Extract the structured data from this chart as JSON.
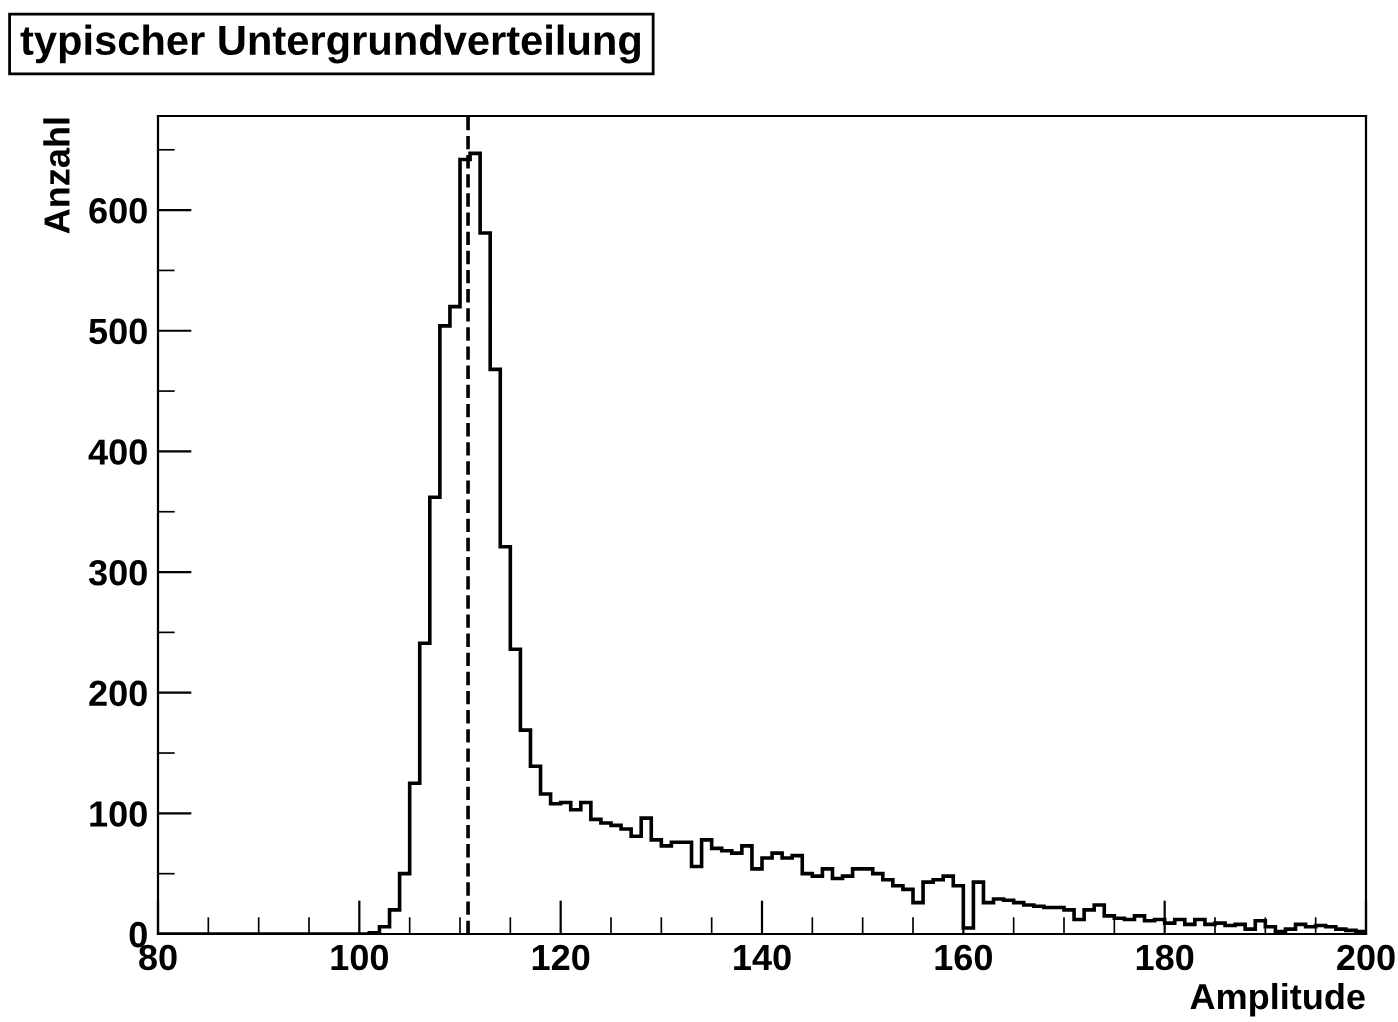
{
  "chart_data": {
    "type": "histogram",
    "title": "typischer Untergrundverteilung",
    "xlabel": "Amplitude",
    "ylabel": "Anzahl",
    "bins": [
      80,
      81,
      82,
      83,
      84,
      85,
      86,
      87,
      88,
      89,
      90,
      91,
      92,
      93,
      94,
      95,
      96,
      97,
      98,
      99,
      100,
      101,
      102,
      103,
      104,
      105,
      106,
      107,
      108,
      109,
      110,
      111,
      112,
      113,
      114,
      115,
      116,
      117,
      118,
      119,
      120,
      121,
      122,
      123,
      124,
      125,
      126,
      127,
      128,
      129,
      130,
      131,
      132,
      133,
      134,
      135,
      136,
      137,
      138,
      139,
      140,
      141,
      142,
      143,
      144,
      145,
      146,
      147,
      148,
      149,
      150,
      151,
      152,
      153,
      154,
      155,
      156,
      157,
      158,
      159,
      160,
      161,
      162,
      163,
      164,
      165,
      166,
      167,
      168,
      169,
      170,
      171,
      172,
      173,
      174,
      175,
      176,
      177,
      178,
      179,
      180,
      181,
      182,
      183,
      184,
      185,
      186,
      187,
      188,
      189,
      190,
      191,
      192,
      193,
      194,
      195,
      196,
      197,
      198,
      199,
      200
    ],
    "values": [
      0,
      0,
      0,
      0,
      0,
      0,
      0,
      0,
      0,
      0,
      0,
      0,
      0,
      0,
      0,
      0,
      0,
      0,
      0,
      0,
      0,
      1,
      6,
      20,
      50,
      125,
      241,
      362,
      504,
      520,
      642,
      647,
      581,
      468,
      321,
      236,
      169,
      139,
      116,
      108,
      109,
      103,
      109,
      95,
      92,
      90,
      87,
      81,
      96,
      78,
      73,
      76,
      76,
      56,
      78,
      71,
      69,
      67,
      73,
      54,
      63,
      67,
      63,
      65,
      50,
      48,
      54,
      46,
      48,
      54,
      54,
      50,
      45,
      40,
      37,
      26,
      43,
      45,
      48,
      40,
      5,
      43,
      26,
      29,
      28,
      26,
      24,
      23,
      22,
      22,
      20,
      12,
      20,
      24,
      15,
      13,
      12,
      15,
      11,
      12,
      9,
      12,
      8,
      12,
      8,
      9,
      7,
      8,
      4,
      11,
      6,
      2,
      4,
      8,
      6,
      7,
      6,
      4,
      3,
      2
    ],
    "color": "#000000",
    "xlim": [
      80,
      200
    ],
    "ylim": [
      0,
      678
    ],
    "xticks": [
      80,
      {
        "value": 85,
        "label": null
      },
      {
        "value": 90,
        "label": null
      },
      {
        "value": 95,
        "label": null
      },
      100,
      {
        "value": 105,
        "label": null
      },
      {
        "value": 110,
        "label": null
      },
      {
        "value": 115,
        "label": null
      },
      120,
      {
        "value": 125,
        "label": null
      },
      {
        "value": 130,
        "label": null
      },
      {
        "value": 135,
        "label": null
      },
      140,
      {
        "value": 145,
        "label": null
      },
      {
        "value": 150,
        "label": null
      },
      {
        "value": 155,
        "label": null
      },
      160,
      {
        "value": 165,
        "label": null
      },
      {
        "value": 170,
        "label": null
      },
      {
        "value": 175,
        "label": null
      },
      180,
      {
        "value": 185,
        "label": null
      },
      {
        "value": 190,
        "label": null
      },
      {
        "value": 195,
        "label": null
      },
      200
    ],
    "yticks": [
      0,
      {
        "value": 50,
        "label": null
      },
      100,
      {
        "value": 150,
        "label": null
      },
      200,
      {
        "value": 250,
        "label": null
      },
      300,
      {
        "value": 350,
        "label": null
      },
      400,
      {
        "value": 450,
        "label": null
      },
      500,
      {
        "value": 550,
        "label": null
      },
      600,
      {
        "value": 650,
        "label": null
      }
    ],
    "ref_lines": [
      {
        "axis": "x",
        "value": 110.8,
        "line_style": "dashed",
        "color": "#000000"
      }
    ],
    "grid": false,
    "legend": false
  }
}
